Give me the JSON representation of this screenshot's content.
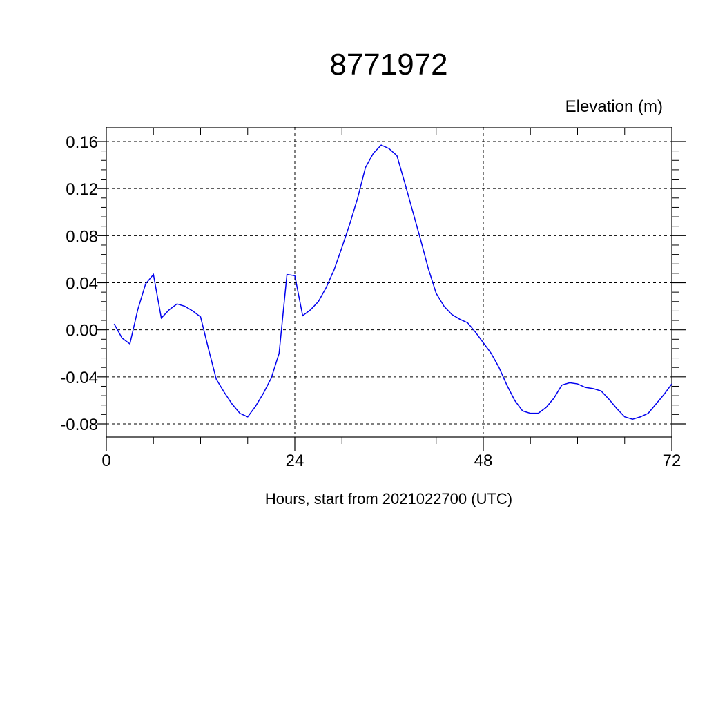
{
  "chart_data": {
    "type": "line",
    "title": "8771972",
    "ylabel": "Elevation (m)",
    "xlabel": "Hours, start from 2021022700 (UTC)",
    "xlim": [
      0,
      72
    ],
    "ylim": [
      -0.08,
      0.16
    ],
    "x_ticks": [
      0,
      24,
      48,
      72
    ],
    "x_tick_labels": [
      "0",
      "24",
      "48",
      "72"
    ],
    "y_ticks": [
      -0.08,
      -0.04,
      0.0,
      0.04,
      0.08,
      0.12,
      0.16
    ],
    "y_tick_labels": [
      "-0.08",
      "-0.04",
      "0.00",
      "0.04",
      "0.08",
      "0.12",
      "0.16"
    ],
    "grid": true,
    "line_color": "#0000ee",
    "series": [
      {
        "x": [
          1,
          2,
          3,
          4,
          5,
          6,
          7,
          8,
          9,
          10,
          11,
          12,
          13,
          14,
          15,
          16,
          17,
          18,
          19,
          20,
          21,
          22,
          23,
          24,
          25,
          26,
          27,
          28,
          29,
          30,
          31,
          32,
          33,
          34,
          35,
          36,
          37,
          38,
          39,
          40,
          41,
          42,
          43,
          44,
          45,
          46,
          47,
          48,
          49,
          50,
          51,
          52,
          53,
          54,
          55,
          56,
          57,
          58,
          59,
          60,
          61,
          62,
          63,
          64,
          65,
          66,
          67,
          68,
          69,
          70,
          71,
          72
        ],
        "values": [
          0.005,
          -0.007,
          -0.012,
          0.017,
          0.039,
          0.047,
          0.01,
          0.017,
          0.022,
          0.02,
          0.016,
          0.011,
          -0.016,
          -0.042,
          -0.053,
          -0.063,
          -0.071,
          -0.074,
          -0.065,
          -0.054,
          -0.041,
          -0.02,
          0.047,
          0.046,
          0.012,
          0.017,
          0.024,
          0.036,
          0.051,
          0.07,
          0.09,
          0.112,
          0.138,
          0.15,
          0.157,
          0.154,
          0.148,
          0.125,
          0.101,
          0.077,
          0.052,
          0.031,
          0.02,
          0.013,
          0.009,
          0.006,
          -0.002,
          -0.011,
          -0.02,
          -0.032,
          -0.047,
          -0.06,
          -0.069,
          -0.071,
          -0.071,
          -0.066,
          -0.058,
          -0.047,
          -0.045,
          -0.046,
          -0.049,
          -0.05,
          -0.052,
          -0.059,
          -0.067,
          -0.074,
          -0.076,
          -0.074,
          -0.071,
          -0.063,
          -0.055,
          -0.046
        ]
      }
    ]
  }
}
